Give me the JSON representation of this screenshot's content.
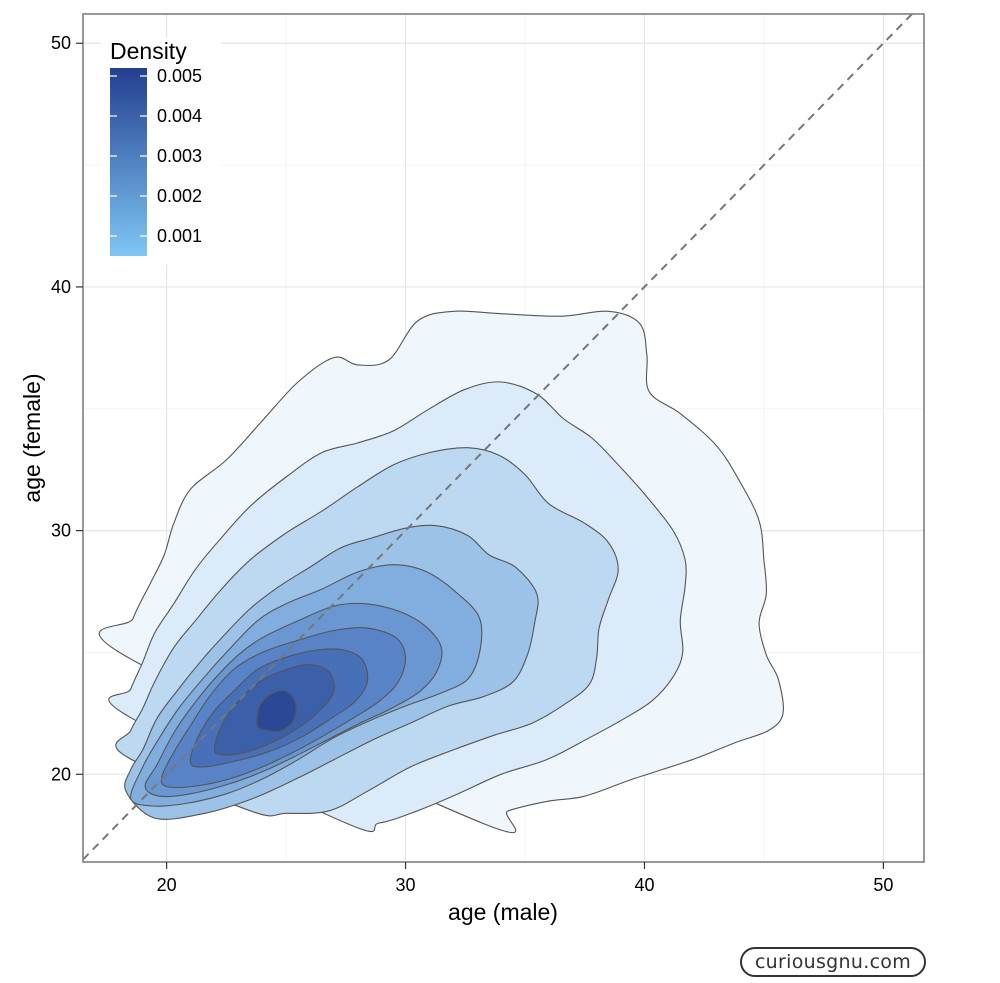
{
  "chart_data": {
    "type": "density-contour",
    "xlabel": "age (male)",
    "ylabel": "age (female)",
    "xlim": [
      16.5,
      51.7
    ],
    "ylim": [
      16.4,
      51.2
    ],
    "x_ticks": [
      20,
      30,
      40,
      50
    ],
    "y_ticks": [
      20,
      30,
      40,
      50
    ],
    "grid": true,
    "reference_line": {
      "style": "dashed",
      "slope": 1,
      "intercept": 0,
      "color": "#777777"
    },
    "legend": {
      "title": "Density",
      "placement": "top-left-inside",
      "labels": [
        "0.005",
        "0.004",
        "0.003",
        "0.002",
        "0.001"
      ],
      "values": [
        0.005,
        0.004,
        0.003,
        0.002,
        0.001
      ],
      "range": [
        0.0005,
        0.0052
      ],
      "color_low": "#7fc6f4",
      "color_high": "#233f8f"
    },
    "mode": [
      24.5,
      22.6
    ],
    "levels": [
      {
        "level": 0.0005,
        "fill": "#eff7fd",
        "points": [
          [
            18.2,
            24.9
          ],
          [
            18.6,
            26.4
          ],
          [
            19.3,
            27.8
          ],
          [
            19.9,
            29.0
          ],
          [
            20.3,
            30.3
          ],
          [
            21.0,
            31.7
          ],
          [
            22.5,
            32.9
          ],
          [
            24.0,
            34.5
          ],
          [
            25.5,
            36.1
          ],
          [
            27.0,
            37.1
          ],
          [
            28.0,
            36.8
          ],
          [
            29.3,
            37.0
          ],
          [
            30.5,
            38.6
          ],
          [
            32.0,
            39.0
          ],
          [
            34.0,
            38.9
          ],
          [
            36.5,
            38.8
          ],
          [
            38.5,
            39.0
          ],
          [
            39.8,
            38.5
          ],
          [
            40.1,
            37.2
          ],
          [
            40.2,
            35.7
          ],
          [
            41.5,
            34.8
          ],
          [
            43.0,
            33.5
          ],
          [
            44.0,
            32.0
          ],
          [
            44.8,
            30.4
          ],
          [
            45.0,
            28.8
          ],
          [
            45.1,
            27.4
          ],
          [
            44.8,
            26.2
          ],
          [
            45.1,
            24.9
          ],
          [
            45.6,
            23.9
          ],
          [
            45.8,
            22.5
          ],
          [
            45.2,
            21.8
          ],
          [
            43.8,
            21.3
          ],
          [
            42.0,
            20.6
          ],
          [
            39.5,
            19.8
          ],
          [
            37.5,
            19.1
          ],
          [
            36.0,
            18.9
          ],
          [
            34.3,
            18.5
          ],
          [
            33.2,
            18.0
          ]
        ]
      },
      {
        "level": 0.001,
        "fill": "#dcebfa",
        "points": [
          [
            18.2,
            22.5
          ],
          [
            18.5,
            23.5
          ],
          [
            19.0,
            24.6
          ],
          [
            19.5,
            25.8
          ],
          [
            20.3,
            27.0
          ],
          [
            21.2,
            28.4
          ],
          [
            22.2,
            29.6
          ],
          [
            23.5,
            31.0
          ],
          [
            25.0,
            32.2
          ],
          [
            26.5,
            33.2
          ],
          [
            28.0,
            33.6
          ],
          [
            29.5,
            34.1
          ],
          [
            31.0,
            35.0
          ],
          [
            32.5,
            35.8
          ],
          [
            34.0,
            36.1
          ],
          [
            35.5,
            35.6
          ],
          [
            36.6,
            34.6
          ],
          [
            37.8,
            33.8
          ],
          [
            38.9,
            32.7
          ],
          [
            40.0,
            31.5
          ],
          [
            41.2,
            30.0
          ],
          [
            41.7,
            28.8
          ],
          [
            41.7,
            27.7
          ],
          [
            41.5,
            26.3
          ],
          [
            41.6,
            25.0
          ],
          [
            41.2,
            24.0
          ],
          [
            40.3,
            23.0
          ],
          [
            39.0,
            22.2
          ],
          [
            37.7,
            21.5
          ],
          [
            35.9,
            20.6
          ],
          [
            34.0,
            20.0
          ],
          [
            32.2,
            19.2
          ],
          [
            30.5,
            18.5
          ],
          [
            28.9,
            18.0
          ],
          [
            27.5,
            18.0
          ]
        ]
      },
      {
        "level": 0.0015,
        "fill": "#bcd9f1",
        "points": [
          [
            18.2,
            20.8
          ],
          [
            18.5,
            21.8
          ],
          [
            19.0,
            22.7
          ],
          [
            19.5,
            23.8
          ],
          [
            20.3,
            25.2
          ],
          [
            21.2,
            26.3
          ],
          [
            22.3,
            27.6
          ],
          [
            23.5,
            28.8
          ],
          [
            25.0,
            29.9
          ],
          [
            26.5,
            30.8
          ],
          [
            28.0,
            31.8
          ],
          [
            29.5,
            32.7
          ],
          [
            31.0,
            33.2
          ],
          [
            32.6,
            33.4
          ],
          [
            33.9,
            33.1
          ],
          [
            35.0,
            32.3
          ],
          [
            36.0,
            31.1
          ],
          [
            37.5,
            30.3
          ],
          [
            38.5,
            29.5
          ],
          [
            38.9,
            28.4
          ],
          [
            38.5,
            27.2
          ],
          [
            38.1,
            26.0
          ],
          [
            38.0,
            24.8
          ],
          [
            37.7,
            23.7
          ],
          [
            36.7,
            22.9
          ],
          [
            35.3,
            22.1
          ],
          [
            33.7,
            21.6
          ],
          [
            32.0,
            21.0
          ],
          [
            30.2,
            20.3
          ],
          [
            28.4,
            19.3
          ],
          [
            26.8,
            18.5
          ],
          [
            25.0,
            18.4
          ],
          [
            23.5,
            18.5
          ]
        ]
      },
      {
        "level": 0.002,
        "fill": "#9dc2e8",
        "points": [
          [
            18.3,
            19.3
          ],
          [
            18.5,
            20.2
          ],
          [
            19.0,
            21.0
          ],
          [
            19.6,
            22.3
          ],
          [
            20.5,
            23.5
          ],
          [
            21.4,
            24.6
          ],
          [
            22.4,
            25.7
          ],
          [
            23.5,
            26.8
          ],
          [
            24.7,
            27.7
          ],
          [
            26.0,
            28.5
          ],
          [
            27.3,
            29.3
          ],
          [
            28.6,
            29.7
          ],
          [
            30.0,
            30.1
          ],
          [
            31.3,
            30.2
          ],
          [
            32.6,
            29.8
          ],
          [
            33.5,
            29.0
          ],
          [
            34.6,
            28.5
          ],
          [
            35.5,
            27.4
          ],
          [
            35.4,
            26.2
          ],
          [
            35.1,
            24.9
          ],
          [
            34.5,
            23.8
          ],
          [
            33.3,
            23.2
          ],
          [
            31.8,
            22.8
          ],
          [
            30.2,
            22.1
          ],
          [
            28.6,
            21.4
          ],
          [
            27.0,
            20.6
          ],
          [
            25.4,
            19.8
          ],
          [
            23.6,
            19.0
          ],
          [
            21.6,
            18.4
          ],
          [
            19.5,
            18.2
          ]
        ]
      },
      {
        "level": 0.0025,
        "fill": "#82addf",
        "points": [
          [
            18.5,
            19.0
          ],
          [
            19.0,
            20.3
          ],
          [
            19.7,
            21.5
          ],
          [
            20.5,
            22.7
          ],
          [
            21.5,
            23.9
          ],
          [
            22.5,
            25.0
          ],
          [
            23.8,
            26.3
          ],
          [
            25.0,
            27.0
          ],
          [
            26.5,
            27.6
          ],
          [
            28.0,
            28.3
          ],
          [
            29.5,
            28.6
          ],
          [
            30.9,
            28.3
          ],
          [
            32.2,
            27.4
          ],
          [
            33.1,
            26.4
          ],
          [
            33.1,
            25.0
          ],
          [
            32.6,
            23.9
          ],
          [
            31.4,
            23.3
          ],
          [
            30.0,
            22.8
          ],
          [
            28.5,
            22.2
          ],
          [
            27.0,
            21.5
          ],
          [
            25.5,
            20.6
          ],
          [
            24.0,
            19.8
          ],
          [
            22.5,
            19.2
          ],
          [
            20.8,
            18.8
          ],
          [
            19.4,
            18.7
          ]
        ]
      },
      {
        "level": 0.003,
        "fill": "#6a97d2",
        "points": [
          [
            19.1,
            19.5
          ],
          [
            19.6,
            20.4
          ],
          [
            20.3,
            21.7
          ],
          [
            21.0,
            22.7
          ],
          [
            21.9,
            23.8
          ],
          [
            23.0,
            24.9
          ],
          [
            24.0,
            25.6
          ],
          [
            25.5,
            26.3
          ],
          [
            27.0,
            26.9
          ],
          [
            28.3,
            27.0
          ],
          [
            29.7,
            26.7
          ],
          [
            30.8,
            26.1
          ],
          [
            31.5,
            25.2
          ],
          [
            31.3,
            24.2
          ],
          [
            30.6,
            23.4
          ],
          [
            29.4,
            22.7
          ],
          [
            28.1,
            22.1
          ],
          [
            26.7,
            21.4
          ],
          [
            25.3,
            20.7
          ],
          [
            24.0,
            20.1
          ],
          [
            22.6,
            19.6
          ],
          [
            21.0,
            19.2
          ],
          [
            19.7,
            19.1
          ]
        ]
      },
      {
        "level": 0.0035,
        "fill": "#5883c6",
        "points": [
          [
            19.8,
            19.9
          ],
          [
            20.3,
            20.9
          ],
          [
            21.0,
            22.0
          ],
          [
            21.8,
            23.2
          ],
          [
            22.8,
            24.3
          ],
          [
            24.0,
            25.0
          ],
          [
            25.5,
            25.5
          ],
          [
            27.0,
            25.9
          ],
          [
            28.4,
            26.0
          ],
          [
            29.6,
            25.6
          ],
          [
            30.0,
            24.8
          ],
          [
            29.7,
            23.8
          ],
          [
            28.9,
            23.0
          ],
          [
            27.8,
            22.3
          ],
          [
            26.6,
            21.6
          ],
          [
            25.3,
            20.9
          ],
          [
            24.0,
            20.3
          ],
          [
            22.6,
            19.8
          ],
          [
            21.1,
            19.5
          ],
          [
            20.0,
            19.5
          ]
        ]
      },
      {
        "level": 0.004,
        "fill": "#4770b8",
        "points": [
          [
            21.0,
            20.5
          ],
          [
            21.3,
            21.5
          ],
          [
            22.0,
            22.6
          ],
          [
            22.8,
            23.4
          ],
          [
            23.8,
            24.3
          ],
          [
            25.0,
            24.8
          ],
          [
            26.3,
            25.1
          ],
          [
            27.4,
            25.1
          ],
          [
            28.2,
            24.7
          ],
          [
            28.4,
            23.8
          ],
          [
            27.9,
            23.0
          ],
          [
            26.9,
            22.3
          ],
          [
            25.6,
            21.5
          ],
          [
            24.2,
            20.9
          ],
          [
            22.7,
            20.5
          ],
          [
            21.5,
            20.3
          ]
        ]
      },
      {
        "level": 0.0045,
        "fill": "#3b5fa9",
        "points": [
          [
            22.0,
            21.0
          ],
          [
            22.3,
            22.0
          ],
          [
            23.0,
            23.0
          ],
          [
            23.9,
            23.8
          ],
          [
            25.0,
            24.3
          ],
          [
            26.0,
            24.5
          ],
          [
            26.8,
            24.2
          ],
          [
            27.0,
            23.4
          ],
          [
            26.4,
            22.6
          ],
          [
            25.5,
            21.9
          ],
          [
            24.4,
            21.3
          ],
          [
            23.3,
            20.9
          ],
          [
            22.4,
            20.8
          ]
        ]
      },
      {
        "level": 0.005,
        "fill": "#2a4896",
        "points": [
          [
            23.8,
            22.0
          ],
          [
            23.9,
            22.8
          ],
          [
            24.4,
            23.3
          ],
          [
            25.0,
            23.4
          ],
          [
            25.4,
            22.9
          ],
          [
            25.3,
            22.2
          ],
          [
            24.8,
            21.8
          ],
          [
            24.2,
            21.8
          ]
        ]
      }
    ]
  },
  "watermark": "curiousgnu.com"
}
